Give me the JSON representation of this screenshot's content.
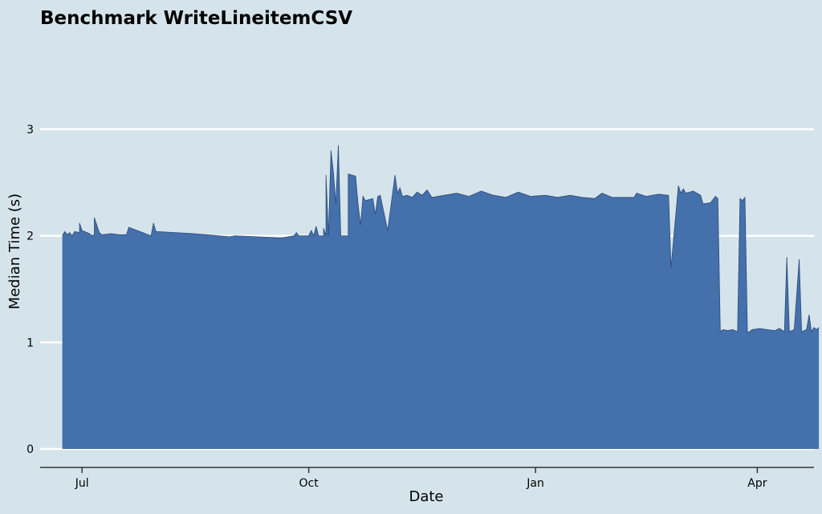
{
  "chart_data": {
    "type": "area",
    "title": "Benchmark WriteLineitemCSV",
    "xlabel": "Date",
    "ylabel": "Median Time (s)",
    "x_domain": [
      "2022-06-14",
      "2023-04-24"
    ],
    "ylim": [
      0,
      3.2
    ],
    "x_ticks": [
      {
        "date": "2022-07-01",
        "label": "Jul"
      },
      {
        "date": "2022-10-01",
        "label": "Oct"
      },
      {
        "date": "2023-01-01",
        "label": "Jan"
      },
      {
        "date": "2023-04-01",
        "label": "Apr"
      }
    ],
    "y_ticks": [
      0,
      1,
      2,
      3
    ],
    "grid": true,
    "colors": {
      "fill": "#4470ab",
      "stroke": "#2c4a78",
      "background": "#d5e4eb",
      "grid": "#ffffff",
      "axis": "#333333"
    },
    "series": [
      {
        "points": [
          [
            "2022-06-23",
            2.0
          ],
          [
            "2022-06-24",
            2.04
          ],
          [
            "2022-06-25",
            2.01
          ],
          [
            "2022-06-26",
            2.03
          ],
          [
            "2022-06-27",
            2.0
          ],
          [
            "2022-06-28",
            2.04
          ],
          [
            "2022-06-30",
            2.03
          ],
          [
            "2022-06-30",
            2.12
          ],
          [
            "2022-07-01",
            2.05
          ],
          [
            "2022-07-04",
            2.02
          ],
          [
            "2022-07-05",
            2.0
          ],
          [
            "2022-07-06",
            2.01
          ],
          [
            "2022-07-06",
            2.17
          ],
          [
            "2022-07-08",
            2.03
          ],
          [
            "2022-07-09",
            2.01
          ],
          [
            "2022-07-13",
            2.02
          ],
          [
            "2022-07-16",
            2.01
          ],
          [
            "2022-07-19",
            2.01
          ],
          [
            "2022-07-20",
            2.08
          ],
          [
            "2022-07-29",
            2.0
          ],
          [
            "2022-07-30",
            2.12
          ],
          [
            "2022-07-31",
            2.04
          ],
          [
            "2022-08-15",
            2.02
          ],
          [
            "2022-08-30",
            1.99
          ],
          [
            "2022-09-01",
            2.0
          ],
          [
            "2022-09-10",
            1.99
          ],
          [
            "2022-09-20",
            1.98
          ],
          [
            "2022-09-25",
            2.0
          ],
          [
            "2022-09-26",
            2.03
          ],
          [
            "2022-09-27",
            2.0
          ],
          [
            "2022-10-01",
            2.0
          ],
          [
            "2022-10-02",
            2.05
          ],
          [
            "2022-10-03",
            2.0
          ],
          [
            "2022-10-04",
            2.09
          ],
          [
            "2022-10-05",
            2.0
          ],
          [
            "2022-10-07",
            2.0
          ],
          [
            "2022-10-07",
            2.07
          ],
          [
            "2022-10-08",
            2.0
          ],
          [
            "2022-10-08",
            2.57
          ],
          [
            "2022-10-09",
            2.0
          ],
          [
            "2022-10-10",
            2.8
          ],
          [
            "2022-10-11",
            2.6
          ],
          [
            "2022-10-12",
            2.3
          ],
          [
            "2022-10-13",
            2.85
          ],
          [
            "2022-10-14",
            2.0
          ],
          [
            "2022-10-17",
            2.0
          ],
          [
            "2022-10-17",
            2.58
          ],
          [
            "2022-10-20",
            2.56
          ],
          [
            "2022-10-21",
            2.3
          ],
          [
            "2022-10-22",
            2.1
          ],
          [
            "2022-10-23",
            2.37
          ],
          [
            "2022-10-24",
            2.33
          ],
          [
            "2022-10-27",
            2.35
          ],
          [
            "2022-10-28",
            2.2
          ],
          [
            "2022-10-29",
            2.37
          ],
          [
            "2022-10-30",
            2.38
          ],
          [
            "2022-11-02",
            2.05
          ],
          [
            "2022-11-05",
            2.57
          ],
          [
            "2022-11-06",
            2.4
          ],
          [
            "2022-11-07",
            2.45
          ],
          [
            "2022-11-08",
            2.37
          ],
          [
            "2022-11-10",
            2.38
          ],
          [
            "2022-11-12",
            2.36
          ],
          [
            "2022-11-14",
            2.41
          ],
          [
            "2022-11-16",
            2.38
          ],
          [
            "2022-11-18",
            2.43
          ],
          [
            "2022-11-20",
            2.36
          ],
          [
            "2022-11-25",
            2.38
          ],
          [
            "2022-11-30",
            2.4
          ],
          [
            "2022-12-05",
            2.37
          ],
          [
            "2022-12-10",
            2.42
          ],
          [
            "2022-12-15",
            2.38
          ],
          [
            "2022-12-20",
            2.36
          ],
          [
            "2022-12-25",
            2.41
          ],
          [
            "2022-12-30",
            2.37
          ],
          [
            "2023-01-05",
            2.38
          ],
          [
            "2023-01-10",
            2.36
          ],
          [
            "2023-01-15",
            2.38
          ],
          [
            "2023-01-20",
            2.36
          ],
          [
            "2023-01-25",
            2.35
          ],
          [
            "2023-01-28",
            2.4
          ],
          [
            "2023-02-01",
            2.36
          ],
          [
            "2023-02-10",
            2.36
          ],
          [
            "2023-02-11",
            2.4
          ],
          [
            "2023-02-15",
            2.37
          ],
          [
            "2023-02-20",
            2.39
          ],
          [
            "2023-02-24",
            2.38
          ],
          [
            "2023-02-25",
            1.7
          ],
          [
            "2023-02-28",
            2.47
          ],
          [
            "2023-03-01",
            2.4
          ],
          [
            "2023-03-02",
            2.44
          ],
          [
            "2023-03-03",
            2.4
          ],
          [
            "2023-03-06",
            2.42
          ],
          [
            "2023-03-09",
            2.38
          ],
          [
            "2023-03-10",
            2.3
          ],
          [
            "2023-03-13",
            2.31
          ],
          [
            "2023-03-15",
            2.37
          ],
          [
            "2023-03-16",
            2.35
          ],
          [
            "2023-03-17",
            1.1
          ],
          [
            "2023-03-18",
            1.12
          ],
          [
            "2023-03-20",
            1.11
          ],
          [
            "2023-03-22",
            1.12
          ],
          [
            "2023-03-24",
            1.1
          ],
          [
            "2023-03-25",
            2.35
          ],
          [
            "2023-03-26",
            2.33
          ],
          [
            "2023-03-27",
            2.36
          ],
          [
            "2023-03-28",
            1.09
          ],
          [
            "2023-03-30",
            1.12
          ],
          [
            "2023-04-02",
            1.13
          ],
          [
            "2023-04-05",
            1.12
          ],
          [
            "2023-04-08",
            1.11
          ],
          [
            "2023-04-10",
            1.13
          ],
          [
            "2023-04-12",
            1.1
          ],
          [
            "2023-04-13",
            1.8
          ],
          [
            "2023-04-14",
            1.1
          ],
          [
            "2023-04-16",
            1.12
          ],
          [
            "2023-04-18",
            1.78
          ],
          [
            "2023-04-19",
            1.1
          ],
          [
            "2023-04-21",
            1.12
          ],
          [
            "2023-04-22",
            1.26
          ],
          [
            "2023-04-23",
            1.1
          ],
          [
            "2023-04-24",
            1.14
          ],
          [
            "2023-04-25",
            1.12
          ],
          [
            "2023-04-26",
            1.14
          ]
        ]
      }
    ]
  }
}
